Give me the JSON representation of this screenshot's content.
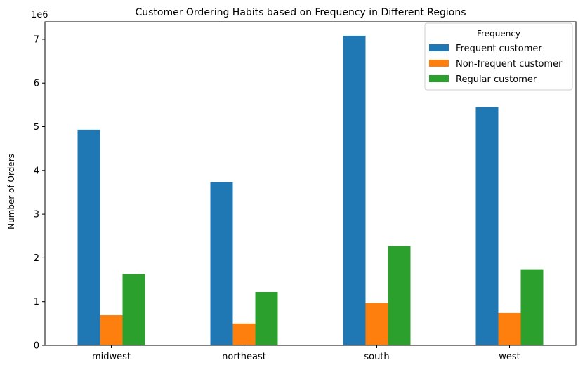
{
  "chart_data": {
    "type": "bar",
    "title": "Customer Ordering Habits based on Frequency in Different Regions",
    "xlabel": "",
    "ylabel": "Number of Orders",
    "offset_label": "1e6",
    "categories": [
      "midwest",
      "northeast",
      "south",
      "west"
    ],
    "ylim": [
      0,
      7400000
    ],
    "yticks": [
      0,
      1000000,
      2000000,
      3000000,
      4000000,
      5000000,
      6000000,
      7000000
    ],
    "ytick_labels": [
      "0",
      "1",
      "2",
      "3",
      "4",
      "5",
      "6",
      "7"
    ],
    "grid": false,
    "legend": {
      "title": "Frequency",
      "placement": "top-right"
    },
    "series": [
      {
        "name": "Frequent customer",
        "color": "#1f77b4",
        "values": [
          4930000,
          3730000,
          7080000,
          5450000
        ]
      },
      {
        "name": "Non-frequent customer",
        "color": "#ff7f0e",
        "values": [
          690000,
          500000,
          970000,
          740000
        ]
      },
      {
        "name": "Regular customer",
        "color": "#2ca02c",
        "values": [
          1630000,
          1220000,
          2270000,
          1740000
        ]
      }
    ]
  }
}
